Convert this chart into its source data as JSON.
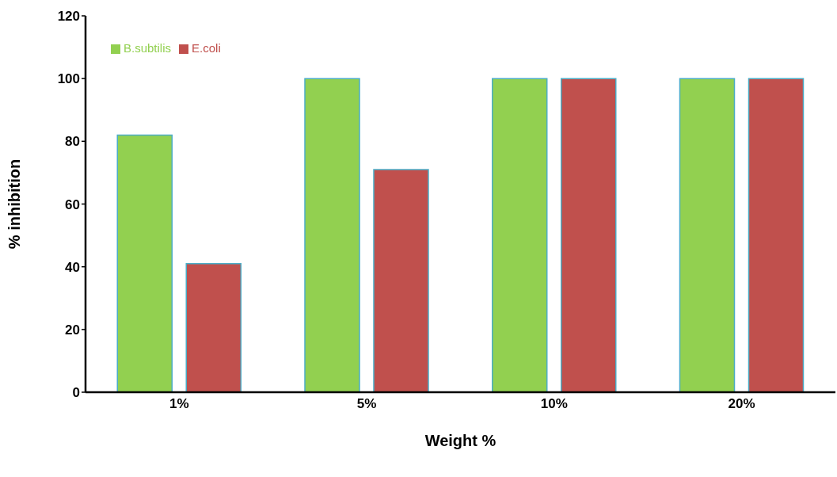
{
  "chart_data": {
    "type": "bar",
    "xlabel": "Weight %",
    "ylabel": "% inhibition",
    "categories": [
      "1%",
      "5%",
      "10%",
      "20%"
    ],
    "series": [
      {
        "name": "B.subtilis",
        "color": "#92d050",
        "values": [
          82,
          100,
          100,
          100
        ]
      },
      {
        "name": "E.coli",
        "color": "#c0504d",
        "values": [
          41,
          71,
          100,
          100
        ]
      }
    ],
    "ylim": [
      0,
      120
    ],
    "yticks": [
      0,
      20,
      40,
      60,
      80,
      100,
      120
    ],
    "grid": false,
    "legend": "top left"
  }
}
